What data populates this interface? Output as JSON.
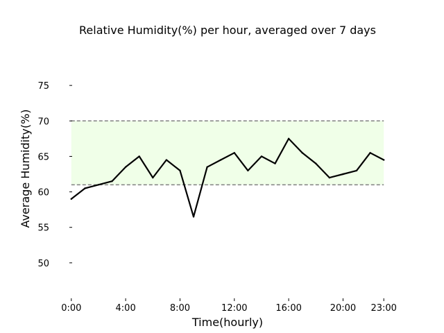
{
  "chart_data": {
    "type": "line",
    "title": "Relative Humidity(%) per hour, averaged over 7 days",
    "xlabel": "Time(hourly)",
    "ylabel": "Average Humidity(%)",
    "x": [
      0,
      1,
      2,
      3,
      4,
      5,
      6,
      7,
      8,
      9,
      10,
      11,
      12,
      13,
      14,
      15,
      16,
      17,
      18,
      19,
      20,
      21,
      22,
      23
    ],
    "series": [
      {
        "values": [
          59.0,
          60.5,
          61.0,
          61.5,
          63.5,
          65.0,
          62.0,
          64.5,
          63.0,
          56.5,
          63.5,
          64.5,
          65.5,
          63.0,
          65.0,
          64.0,
          67.5,
          65.5,
          64.0,
          62.0,
          62.5,
          63.0,
          65.5,
          64.5
        ],
        "color": "#000000"
      }
    ],
    "xticks": [
      0,
      4,
      8,
      12,
      16,
      20,
      23
    ],
    "xtick_labels": [
      "0:00",
      "4:00",
      "8:00",
      "12:00",
      "16:00",
      "20:00",
      "23:00"
    ],
    "yticks": [
      50,
      55,
      60,
      65,
      70,
      75
    ],
    "xlim": [
      -0.5,
      23.5
    ],
    "ylim": [
      45.0,
      80.0
    ],
    "band": {
      "low": 61,
      "high": 70,
      "fill_color": "#f0ffe8",
      "line_color": "#808080",
      "line_style": "dashed"
    },
    "grid": false
  }
}
